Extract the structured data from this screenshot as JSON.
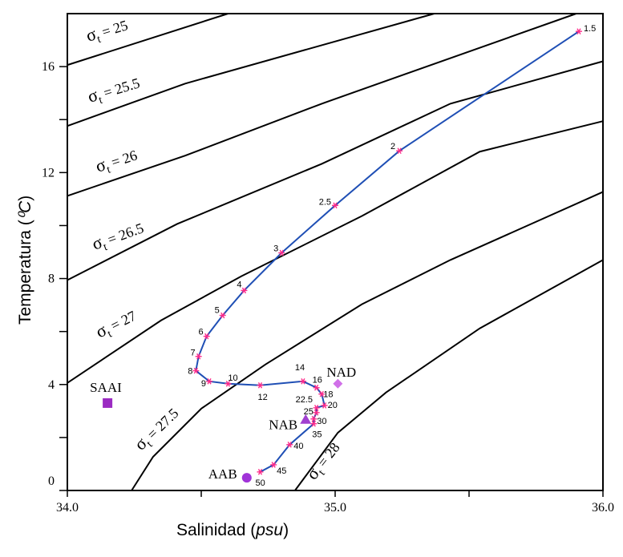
{
  "chart_data": {
    "type": "scatter",
    "xlabel": "Salinidad",
    "xlabel_unit": "psu",
    "ylabel": "Temperatura",
    "ylabel_unit": "⁰C",
    "xlim": [
      34.0,
      36.0
    ],
    "ylim": [
      0,
      18
    ],
    "x_ticks": [
      "34.0",
      "35.0",
      "36.0"
    ],
    "x_ticks_values": [
      34.0,
      35.0,
      36.0
    ],
    "x_minor_ticks": [
      34.5,
      35.5
    ],
    "y_ticks": [
      "0",
      "4",
      "8",
      "12",
      "16"
    ],
    "y_ticks_values": [
      0,
      4,
      8,
      12,
      16
    ],
    "y_minor_ticks": [
      2,
      6,
      10,
      14
    ],
    "grid": false,
    "profile": {
      "line_color": "#1f4fb5",
      "marker_color": "#ff2a8a",
      "marker": "asterisk",
      "points": [
        {
          "label": "1.5",
          "s": 35.91,
          "t": 17.33
        },
        {
          "label": "2",
          "s": 35.24,
          "t": 12.82
        },
        {
          "label": "2.5",
          "s": 35.0,
          "t": 10.76
        },
        {
          "label": "3",
          "s": 34.8,
          "t": 8.97
        },
        {
          "label": "4",
          "s": 34.66,
          "t": 7.55
        },
        {
          "label": "5",
          "s": 34.58,
          "t": 6.61
        },
        {
          "label": "6",
          "s": 34.52,
          "t": 5.82
        },
        {
          "label": "7",
          "s": 34.49,
          "t": 5.06
        },
        {
          "label": "8",
          "s": 34.48,
          "t": 4.52
        },
        {
          "label": "9",
          "s": 34.53,
          "t": 4.12
        },
        {
          "label": "10",
          "s": 34.6,
          "t": 4.03
        },
        {
          "label": "12",
          "s": 34.72,
          "t": 3.97
        },
        {
          "label": "14",
          "s": 34.88,
          "t": 4.12
        },
        {
          "label": "16",
          "s": 34.93,
          "t": 3.88
        },
        {
          "label": "18",
          "s": 34.95,
          "t": 3.64
        },
        {
          "label": "20",
          "s": 34.96,
          "t": 3.21
        },
        {
          "label": "22.5",
          "s": 34.93,
          "t": 3.12
        },
        {
          "label": "25",
          "s": 34.93,
          "t": 2.94
        },
        {
          "label": "30",
          "s": 34.92,
          "t": 2.7
        },
        {
          "label": "35",
          "s": 34.92,
          "t": 2.52
        },
        {
          "label": "40",
          "s": 34.83,
          "t": 1.73
        },
        {
          "label": "45",
          "s": 34.77,
          "t": 0.97
        },
        {
          "label": "50",
          "s": 34.72,
          "t": 0.7
        }
      ]
    },
    "water_masses": [
      {
        "name": "SAAI",
        "s": 34.15,
        "t": 3.3,
        "marker": "square",
        "color": "#9b2bc2"
      },
      {
        "name": "NAD",
        "s": 35.01,
        "t": 4.03,
        "marker": "diamond",
        "color": "#d070e8"
      },
      {
        "name": "NAB",
        "s": 34.89,
        "t": 2.67,
        "marker": "triangle",
        "color": "#a040d0"
      },
      {
        "name": "AAB",
        "s": 34.67,
        "t": 0.48,
        "marker": "circle",
        "color": "#a033d8"
      }
    ],
    "isopycnals": [
      {
        "label": "σ",
        "sub": "t",
        "value": "= 25",
        "points": [
          [
            34.0,
            16.06
          ],
          [
            34.6,
            18
          ]
        ]
      },
      {
        "label": "σ",
        "sub": "t",
        "value": "= 25.5",
        "points": [
          [
            34.0,
            13.76
          ],
          [
            34.44,
            15.36
          ],
          [
            35.37,
            18
          ]
        ]
      },
      {
        "label": "σ",
        "sub": "t",
        "value": "= 26",
        "points": [
          [
            34.0,
            11.12
          ],
          [
            34.44,
            12.64
          ],
          [
            34.95,
            14.6
          ],
          [
            35.9,
            18
          ]
        ]
      },
      {
        "label": "σ",
        "sub": "t",
        "value": "= 26.5",
        "points": [
          [
            34.0,
            7.94
          ],
          [
            34.41,
            10.06
          ],
          [
            34.95,
            12.33
          ],
          [
            35.43,
            14.6
          ],
          [
            36.0,
            16.2
          ]
        ]
      },
      {
        "label": "σ",
        "sub": "t",
        "value": "= 27",
        "points": [
          [
            34.0,
            4.06
          ],
          [
            34.35,
            6.42
          ],
          [
            34.65,
            8.09
          ],
          [
            35.1,
            10.36
          ],
          [
            35.54,
            12.79
          ],
          [
            36.0,
            13.94
          ]
        ]
      },
      {
        "label": "σ",
        "sub": "t",
        "value": "= 27.5",
        "points": [
          [
            34.24,
            0.0
          ],
          [
            34.32,
            1.27
          ],
          [
            34.5,
            3.09
          ],
          [
            34.74,
            4.76
          ],
          [
            35.1,
            7.03
          ],
          [
            35.43,
            8.7
          ],
          [
            36.0,
            11.27
          ]
        ]
      },
      {
        "label": "σ",
        "sub": "t",
        "value": "= 28",
        "points": [
          [
            34.85,
            0.0
          ],
          [
            35.01,
            2.18
          ],
          [
            35.19,
            3.7
          ],
          [
            35.54,
            6.12
          ],
          [
            36.0,
            8.7
          ]
        ]
      }
    ]
  }
}
